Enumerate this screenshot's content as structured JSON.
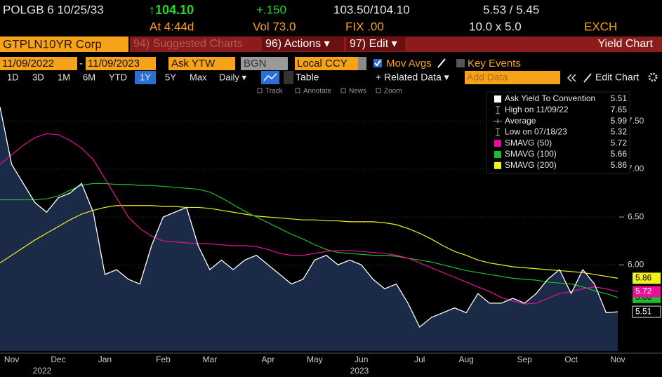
{
  "header": {
    "ticker": "POLGB 6 10/25/33",
    "price": "↑104.10",
    "change": "+.150",
    "bid_ask": "103.50/104.10",
    "yields": "5.53 / 5.45",
    "time": "At 4:44d",
    "volume": "Vol 73.0",
    "fix": "FIX .00",
    "size": "10.0 x 5.0",
    "exchange": "EXCH"
  },
  "toolbar": {
    "security": "GTPLN10YR Corp",
    "suggested": "94) Suggested Charts",
    "actions": "96) Actions ▾",
    "edit": "97) Edit ▾",
    "view": "Yield Chart"
  },
  "settings": {
    "start": "11/09/2022",
    "dash": "-",
    "end": "11/09/2023",
    "field": "Ask YTW",
    "source": "BGN",
    "currency": "Local CCY",
    "mov_avgs": "Mov Avgs",
    "key_events": "Key Events"
  },
  "periods": [
    "1D",
    "3D",
    "1M",
    "6M",
    "YTD",
    "1Y",
    "5Y",
    "Max"
  ],
  "controls": {
    "freq": "Daily ▾",
    "table": "Table",
    "related": "+ Related Data ▾",
    "add": "Add Data",
    "edit_chart": "Edit Chart"
  },
  "tools": [
    "Track",
    "Annotate",
    "News",
    "Zoom"
  ],
  "chart_data": {
    "type": "line",
    "categories": [
      null,
      "Nov",
      null,
      null,
      null,
      "Dec",
      null,
      null,
      null,
      "Jan",
      null,
      null,
      null,
      null,
      "Feb",
      null,
      null,
      null,
      "Mar",
      null,
      null,
      null,
      null,
      "Apr",
      null,
      null,
      null,
      "May",
      null,
      null,
      null,
      "Jun",
      null,
      null,
      null,
      null,
      "Jul",
      null,
      null,
      null,
      "Aug",
      null,
      null,
      null,
      null,
      "Sep",
      null,
      null,
      null,
      "Oct",
      null,
      null,
      null,
      "Nov"
    ],
    "years": [
      "2022",
      "2023"
    ],
    "series": [
      {
        "name": "Ask Yield To Convention",
        "color": "#ffffff",
        "values": [
          7.65,
          7.05,
          6.85,
          6.65,
          6.55,
          6.7,
          6.75,
          6.85,
          6.55,
          5.9,
          5.95,
          5.85,
          5.8,
          6.2,
          6.5,
          6.55,
          6.6,
          6.2,
          5.95,
          6.05,
          5.95,
          6.05,
          6.1,
          6.0,
          5.9,
          5.8,
          5.85,
          6.05,
          6.1,
          6.0,
          6.05,
          6.0,
          5.85,
          5.75,
          5.8,
          5.6,
          5.35,
          5.45,
          5.5,
          5.55,
          5.5,
          5.7,
          5.6,
          5.6,
          5.65,
          5.6,
          5.7,
          5.85,
          5.95,
          5.7,
          5.95,
          5.8,
          5.5,
          5.51
        ]
      },
      {
        "name": "SMAVG (50)",
        "color": "#e8109a",
        "values": [
          7.05,
          7.15,
          7.25,
          7.33,
          7.37,
          7.36,
          7.3,
          7.22,
          7.1,
          6.9,
          6.7,
          6.5,
          6.38,
          6.3,
          6.25,
          6.24,
          6.23,
          6.22,
          6.22,
          6.21,
          6.2,
          6.2,
          6.19,
          6.16,
          6.12,
          6.1,
          6.1,
          6.12,
          6.14,
          6.15,
          6.15,
          6.14,
          6.13,
          6.12,
          6.1,
          6.07,
          6.02,
          5.97,
          5.92,
          5.87,
          5.82,
          5.77,
          5.72,
          5.66,
          5.62,
          5.59,
          5.6,
          5.65,
          5.7,
          5.72,
          5.75,
          5.77,
          5.75,
          5.72
        ]
      },
      {
        "name": "SMAVG (100)",
        "color": "#1fbf2c",
        "values": [
          6.68,
          6.68,
          6.68,
          6.68,
          6.69,
          6.72,
          6.78,
          6.83,
          6.85,
          6.85,
          6.84,
          6.84,
          6.83,
          6.83,
          6.82,
          6.81,
          6.8,
          6.79,
          6.76,
          6.7,
          6.63,
          6.56,
          6.5,
          6.44,
          6.38,
          6.32,
          6.27,
          6.21,
          6.16,
          6.13,
          6.12,
          6.11,
          6.1,
          6.1,
          6.09,
          6.07,
          6.05,
          6.03,
          6.0,
          5.97,
          5.94,
          5.92,
          5.9,
          5.88,
          5.86,
          5.85,
          5.84,
          5.82,
          5.81,
          5.8,
          5.77,
          5.73,
          5.7,
          5.66
        ]
      },
      {
        "name": "SMAVG (200)",
        "color": "#f2f21a",
        "values": [
          6.02,
          6.1,
          6.18,
          6.26,
          6.33,
          6.4,
          6.47,
          6.53,
          6.57,
          6.6,
          6.62,
          6.62,
          6.62,
          6.62,
          6.61,
          6.61,
          6.6,
          6.6,
          6.59,
          6.57,
          6.55,
          6.53,
          6.51,
          6.5,
          6.49,
          6.48,
          6.47,
          6.47,
          6.46,
          6.46,
          6.45,
          6.45,
          6.45,
          6.44,
          6.42,
          6.38,
          6.33,
          6.27,
          6.2,
          6.14,
          6.1,
          6.05,
          6.02,
          6.0,
          5.98,
          5.97,
          5.96,
          5.95,
          5.94,
          5.93,
          5.92,
          5.9,
          5.88,
          5.86
        ]
      }
    ],
    "stats": [
      {
        "label": "High on 11/09/22",
        "value": 7.65
      },
      {
        "label": "Average",
        "value": 5.99
      },
      {
        "label": "Low on 07/18/23",
        "value": 5.32
      }
    ],
    "area_color": "#1a2a47",
    "ylim": [
      5.1,
      7.85
    ],
    "yticks": [
      {
        "value": 7.5,
        "label": "7.50"
      },
      {
        "value": 7,
        "label": "7.00"
      },
      {
        "value": 6.5,
        "label": "6.50"
      },
      {
        "value": 6,
        "label": "6.00"
      }
    ],
    "grid": true
  }
}
